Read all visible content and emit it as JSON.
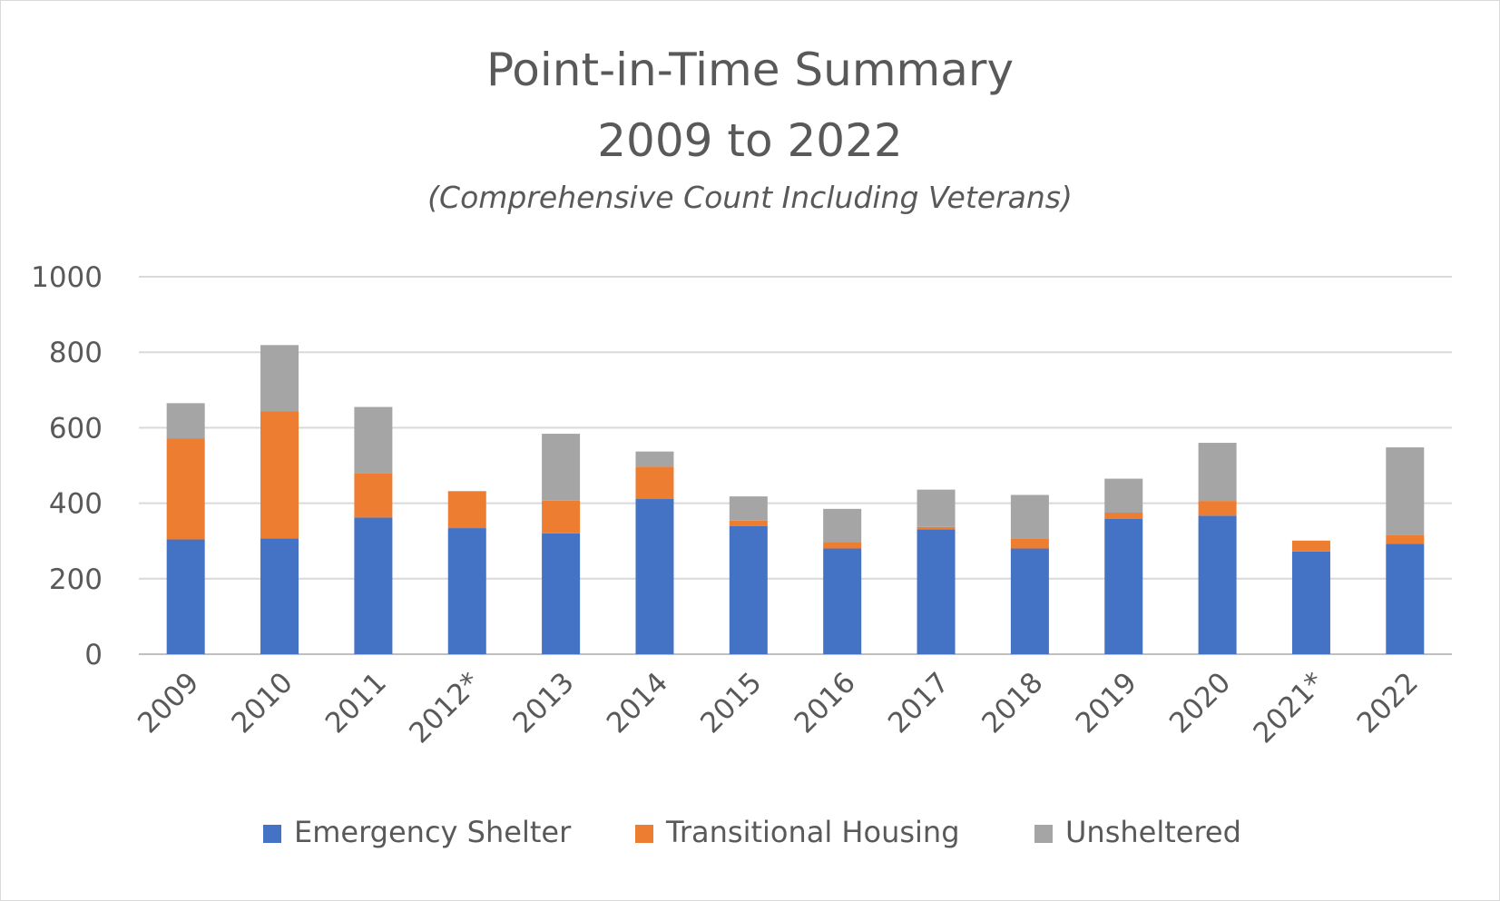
{
  "chart_data": {
    "type": "bar",
    "stacked": true,
    "title": "Point-in-Time Summary",
    "title_line2": "2009 to 2022",
    "subtitle": "(Comprehensive Count Including Veterans)",
    "xlabel": "",
    "ylabel": "",
    "ylim": [
      0,
      1000
    ],
    "yticks": [
      0,
      200,
      400,
      600,
      800,
      1000
    ],
    "grid": true,
    "legend_position": "bottom",
    "categories": [
      "2009",
      "2010",
      "2011",
      "2012*",
      "2013",
      "2014",
      "2015",
      "2016",
      "2017",
      "2018",
      "2019",
      "2020",
      "2021*",
      "2022"
    ],
    "series": [
      {
        "name": "Emergency Shelter",
        "color": "#4472c4",
        "values": [
          304,
          307,
          362,
          334,
          320,
          411,
          339,
          280,
          331,
          280,
          359,
          367,
          272,
          292
        ]
      },
      {
        "name": "Transitional Housing",
        "color": "#ed7d31",
        "values": [
          268,
          337,
          118,
          98,
          87,
          86,
          15,
          17,
          6,
          27,
          16,
          39,
          29,
          23
        ]
      },
      {
        "name": "Unsheltered",
        "color": "#a5a5a5",
        "values": [
          93,
          175,
          175,
          0,
          177,
          40,
          64,
          88,
          99,
          115,
          90,
          154,
          0,
          233
        ]
      }
    ]
  }
}
